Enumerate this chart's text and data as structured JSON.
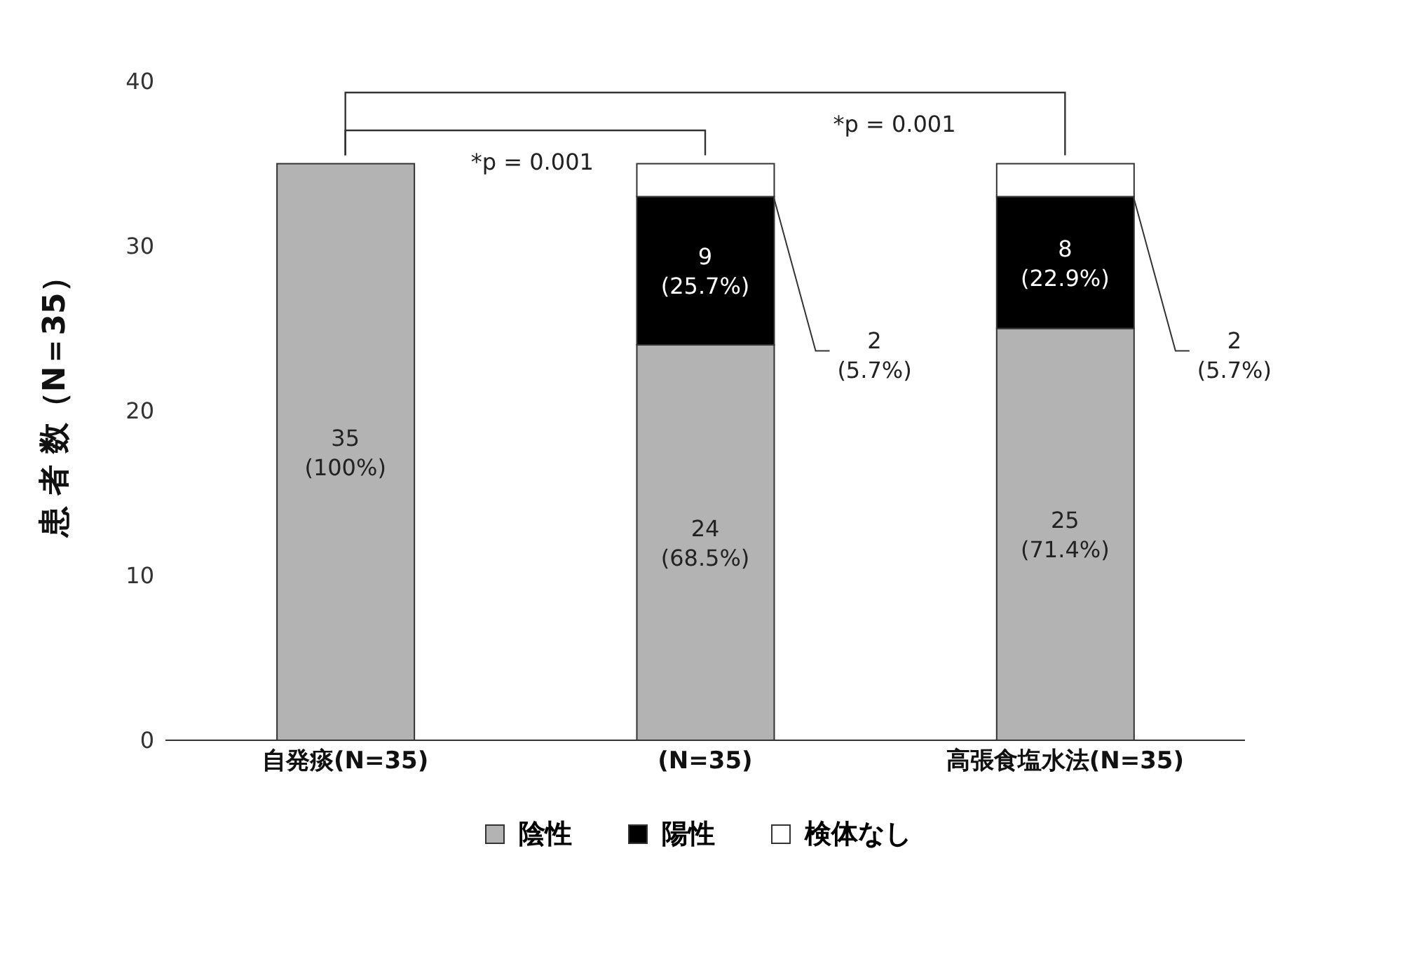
{
  "chart_data": {
    "type": "bar",
    "stacked": true,
    "ylabel": "患 者 数（N＝35）",
    "categories": [
      "自発痰(N=35)",
      "(N=35)",
      "高張食塩水法(N=35)"
    ],
    "series": [
      {
        "name": "陰性",
        "color": "#b3b3b3",
        "values": [
          35,
          24,
          25
        ],
        "value_labels": [
          "35\n(100%)",
          "24\n(68.5%)",
          "25\n(71.4%)"
        ]
      },
      {
        "name": "陽性",
        "color": "#000000",
        "values": [
          null,
          9,
          8
        ],
        "value_labels": [
          null,
          "9\n(25.7%)",
          "8\n(22.9%)"
        ]
      },
      {
        "name": "検体なし",
        "color": "#ffffff",
        "values": [
          null,
          2,
          2
        ],
        "value_labels": [
          null,
          "2\n(5.7%)",
          "2\n(5.7%)"
        ]
      }
    ],
    "ylim": [
      0,
      40
    ],
    "yticks": [
      0,
      10,
      20,
      30,
      40
    ],
    "grid": false,
    "legend": "bottom",
    "annotations": [
      "*p = 0.001",
      "*p = 0.001"
    ]
  }
}
